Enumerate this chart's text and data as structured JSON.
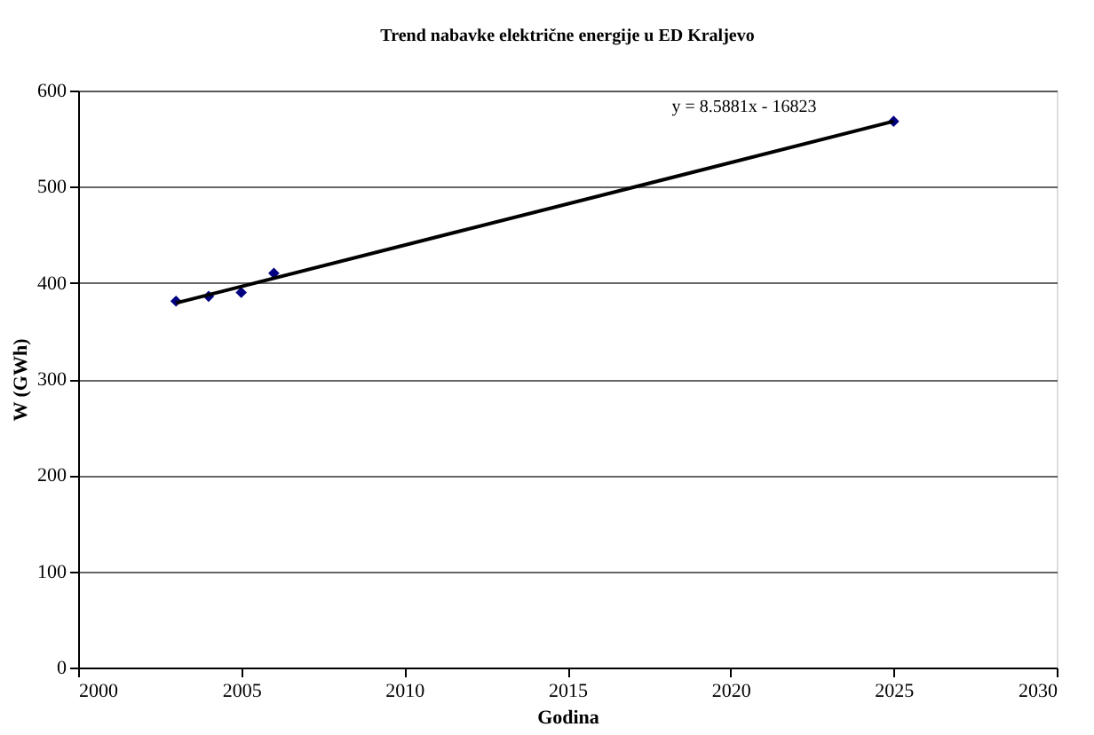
{
  "chart_data": {
    "type": "scatter",
    "title": "Trend nabavke električne energije u ED Kraljevo",
    "xlabel": "Godina",
    "ylabel": "W (GWh)",
    "x": [
      2003,
      2004,
      2005,
      2006,
      2025
    ],
    "series": [
      {
        "color": "#000080",
        "values": [
          381,
          386,
          390,
          410,
          568
        ],
        "marker": "diamond"
      },
      {
        "type": "line",
        "color": "#000000",
        "x": [
          2003,
          2025
        ],
        "values": [
          379,
          568
        ],
        "marker": "none"
      }
    ],
    "annotations": [
      "y = 8.5881x - 16823"
    ],
    "xlim": [
      2000,
      2030
    ],
    "xticks": [
      2000,
      2005,
      2010,
      2015,
      2020,
      2025,
      2030
    ],
    "ylim": [
      0,
      600
    ],
    "yticks": [
      0,
      100,
      200,
      300,
      400,
      500,
      600
    ],
    "grid": "y"
  }
}
